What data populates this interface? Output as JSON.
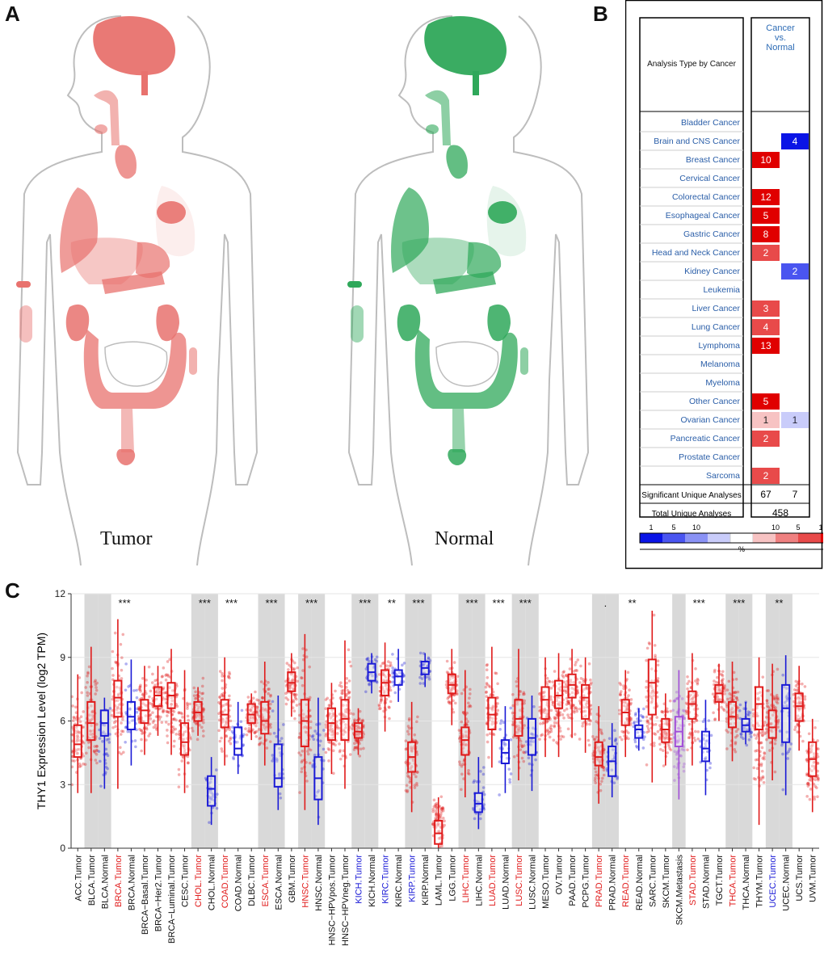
{
  "panels": {
    "a": "A",
    "b": "B",
    "c": "C"
  },
  "anatomy": {
    "tumor_label": "Tumor",
    "normal_label": "Normal",
    "tumor_color": "#e8726e",
    "normal_color": "#2fa85a"
  },
  "oncomine": {
    "header_left": "Analysis Type by Cancer",
    "header_right": [
      "Cancer",
      "vs.",
      "Normal"
    ],
    "rows": [
      {
        "name": "Bladder Cancer",
        "up": null,
        "down": null
      },
      {
        "name": "Brain and CNS Cancer",
        "up": null,
        "down": 4
      },
      {
        "name": "Breast Cancer",
        "up": 10,
        "down": null
      },
      {
        "name": "Cervical Cancer",
        "up": null,
        "down": null
      },
      {
        "name": "Colorectal Cancer",
        "up": 12,
        "down": null
      },
      {
        "name": "Esophageal Cancer",
        "up": 5,
        "down": null
      },
      {
        "name": "Gastric Cancer",
        "up": 8,
        "down": null
      },
      {
        "name": "Head and Neck Cancer",
        "up": 2,
        "down": null
      },
      {
        "name": "Kidney Cancer",
        "up": null,
        "down": 2
      },
      {
        "name": "Leukemia",
        "up": null,
        "down": null
      },
      {
        "name": "Liver Cancer",
        "up": 3,
        "down": null
      },
      {
        "name": "Lung Cancer",
        "up": 4,
        "down": null
      },
      {
        "name": "Lymphoma",
        "up": 13,
        "down": null
      },
      {
        "name": "Melanoma",
        "up": null,
        "down": null
      },
      {
        "name": "Myeloma",
        "up": null,
        "down": null
      },
      {
        "name": "Other Cancer",
        "up": 5,
        "down": null
      },
      {
        "name": "Ovarian Cancer",
        "up": 1,
        "down": 1
      },
      {
        "name": "Pancreatic Cancer",
        "up": 2,
        "down": null
      },
      {
        "name": "Prostate Cancer",
        "up": null,
        "down": null
      },
      {
        "name": "Sarcoma",
        "up": 2,
        "down": null
      }
    ],
    "significant_label": "Significant Unique Analyses",
    "significant_up": "67",
    "significant_down": "7",
    "total_label": "Total Unique Analyses",
    "total": "458",
    "legend_blue_ticks": [
      "1",
      "5",
      "10"
    ],
    "legend_red_ticks": [
      "10",
      "5",
      "1"
    ],
    "legend_unit": "%",
    "blue_scale": [
      "#0a14e6",
      "#4a55f0",
      "#8a92f5",
      "#c9ccfa"
    ],
    "red_scale": [
      "#f7c3c3",
      "#ef8080",
      "#e84a4a",
      "#e00000"
    ]
  },
  "chart_data": {
    "type": "box",
    "ylabel": "THY1 Expression Level (log2 TPM)",
    "ylim": [
      0,
      12
    ],
    "yticks": [
      "0",
      "3",
      "6",
      "9",
      "12"
    ],
    "colors": {
      "tumor": "#e01b1b",
      "normal": "#1a1ad6",
      "metastasis": "#a24fd9"
    },
    "categories": [
      {
        "label": "ACC.Tumor",
        "type": "tumor",
        "shade": false,
        "median": 4.9,
        "q1": 4.3,
        "q3": 5.8,
        "lo": 2.6,
        "hi": 8.2,
        "lc": "black",
        "sig": ""
      },
      {
        "label": "BLCA.Tumor",
        "type": "tumor",
        "shade": true,
        "median": 5.9,
        "q1": 5.1,
        "q3": 6.9,
        "lo": 2.6,
        "hi": 9.5,
        "lc": "black",
        "sig": ""
      },
      {
        "label": "BLCA.Normal",
        "type": "normal",
        "shade": true,
        "median": 5.9,
        "q1": 5.3,
        "q3": 6.5,
        "lo": 2.8,
        "hi": 7.1,
        "lc": "black",
        "sig": ""
      },
      {
        "label": "BRCA.Tumor",
        "type": "tumor",
        "shade": false,
        "median": 7.1,
        "q1": 6.2,
        "q3": 7.9,
        "lo": 2.8,
        "hi": 10.8,
        "lc": "red",
        "sig": "***"
      },
      {
        "label": "BRCA.Normal",
        "type": "normal",
        "shade": false,
        "median": 6.2,
        "q1": 5.6,
        "q3": 6.9,
        "lo": 3.9,
        "hi": 8.9,
        "lc": "black",
        "sig": ""
      },
      {
        "label": "BRCA−Basal.Tumor",
        "type": "tumor",
        "shade": false,
        "median": 6.5,
        "q1": 5.9,
        "q3": 7.0,
        "lo": 4.4,
        "hi": 8.6,
        "lc": "black",
        "sig": ""
      },
      {
        "label": "BRCA−Her2.Tumor",
        "type": "tumor",
        "shade": false,
        "median": 7.2,
        "q1": 6.7,
        "q3": 7.6,
        "lo": 5.3,
        "hi": 8.6,
        "lc": "black",
        "sig": ""
      },
      {
        "label": "BRCA−Luminal.Tumor",
        "type": "tumor",
        "shade": false,
        "median": 7.2,
        "q1": 6.6,
        "q3": 7.8,
        "lo": 4.4,
        "hi": 9.4,
        "lc": "black",
        "sig": ""
      },
      {
        "label": "CESC.Tumor",
        "type": "tumor",
        "shade": false,
        "median": 5.0,
        "q1": 4.4,
        "q3": 5.9,
        "lo": 2.6,
        "hi": 8.4,
        "lc": "black",
        "sig": ""
      },
      {
        "label": "CHOL.Tumor",
        "type": "tumor",
        "shade": true,
        "median": 6.4,
        "q1": 6.0,
        "q3": 6.9,
        "lo": 5.3,
        "hi": 7.6,
        "lc": "red",
        "sig": "***"
      },
      {
        "label": "CHOL.Normal",
        "type": "normal",
        "shade": true,
        "median": 2.8,
        "q1": 2.0,
        "q3": 3.4,
        "lo": 1.1,
        "hi": 4.3,
        "lc": "black",
        "sig": ""
      },
      {
        "label": "COAD.Tumor",
        "type": "tumor",
        "shade": false,
        "median": 6.3,
        "q1": 5.7,
        "q3": 7.0,
        "lo": 3.9,
        "hi": 9.0,
        "lc": "red",
        "sig": "***"
      },
      {
        "label": "COAD.Normal",
        "type": "normal",
        "shade": false,
        "median": 4.7,
        "q1": 4.4,
        "q3": 5.7,
        "lo": 3.5,
        "hi": 6.9,
        "lc": "black",
        "sig": ""
      },
      {
        "label": "DLBC.Tumor",
        "type": "tumor",
        "shade": false,
        "median": 6.3,
        "q1": 5.9,
        "q3": 6.8,
        "lo": 5.1,
        "hi": 7.3,
        "lc": "black",
        "sig": ""
      },
      {
        "label": "ESCA.Tumor",
        "type": "tumor",
        "shade": true,
        "median": 6.0,
        "q1": 5.4,
        "q3": 6.9,
        "lo": 3.9,
        "hi": 8.8,
        "lc": "red",
        "sig": "***"
      },
      {
        "label": "ESCA.Normal",
        "type": "normal",
        "shade": true,
        "median": 3.3,
        "q1": 2.9,
        "q3": 4.9,
        "lo": 1.8,
        "hi": 7.2,
        "lc": "black",
        "sig": ""
      },
      {
        "label": "GBM.Tumor",
        "type": "tumor",
        "shade": false,
        "median": 7.8,
        "q1": 7.4,
        "q3": 8.3,
        "lo": 6.2,
        "hi": 9.2,
        "lc": "black",
        "sig": ""
      },
      {
        "label": "HNSC.Tumor",
        "type": "tumor",
        "shade": true,
        "median": 6.0,
        "q1": 4.8,
        "q3": 7.0,
        "lo": 1.8,
        "hi": 10.1,
        "lc": "red",
        "sig": "***"
      },
      {
        "label": "HNSC.Normal",
        "type": "normal",
        "shade": true,
        "median": 3.3,
        "q1": 2.3,
        "q3": 4.3,
        "lo": 1.1,
        "hi": 7.1,
        "lc": "black",
        "sig": ""
      },
      {
        "label": "HNSC−HPVpos.Tumor",
        "type": "tumor",
        "shade": false,
        "median": 5.9,
        "q1": 5.1,
        "q3": 6.6,
        "lo": 3.5,
        "hi": 7.8,
        "lc": "black",
        "sig": ""
      },
      {
        "label": "HNSC−HPVneg.Tumor",
        "type": "tumor",
        "shade": false,
        "median": 6.1,
        "q1": 5.1,
        "q3": 7.0,
        "lo": 2.8,
        "hi": 9.8,
        "lc": "black",
        "sig": ""
      },
      {
        "label": "KICH.Tumor",
        "type": "tumor",
        "shade": true,
        "median": 5.5,
        "q1": 5.2,
        "q3": 5.9,
        "lo": 4.4,
        "hi": 6.6,
        "lc": "blue",
        "sig": "***"
      },
      {
        "label": "KICH.Normal",
        "type": "normal",
        "shade": true,
        "median": 8.3,
        "q1": 7.9,
        "q3": 8.7,
        "lo": 7.3,
        "hi": 9.2,
        "lc": "black",
        "sig": ""
      },
      {
        "label": "KIRC.Tumor",
        "type": "tumor",
        "shade": false,
        "median": 7.8,
        "q1": 7.2,
        "q3": 8.4,
        "lo": 5.5,
        "hi": 9.7,
        "lc": "blue",
        "sig": "**"
      },
      {
        "label": "KIRC.Normal",
        "type": "normal",
        "shade": false,
        "median": 8.1,
        "q1": 7.7,
        "q3": 8.4,
        "lo": 6.9,
        "hi": 9.4,
        "lc": "black",
        "sig": ""
      },
      {
        "label": "KIRP.Tumor",
        "type": "tumor",
        "shade": true,
        "median": 4.3,
        "q1": 3.6,
        "q3": 5.0,
        "lo": 1.7,
        "hi": 6.9,
        "lc": "blue",
        "sig": "***"
      },
      {
        "label": "KIRP.Normal",
        "type": "normal",
        "shade": true,
        "median": 8.5,
        "q1": 8.2,
        "q3": 8.8,
        "lo": 7.6,
        "hi": 9.2,
        "lc": "black",
        "sig": ""
      },
      {
        "label": "LAML.Tumor",
        "type": "tumor",
        "shade": false,
        "median": 0.7,
        "q1": 0.2,
        "q3": 1.3,
        "lo": 0.0,
        "hi": 2.4,
        "lc": "black",
        "sig": ""
      },
      {
        "label": "LGG.Tumor",
        "type": "tumor",
        "shade": false,
        "median": 7.7,
        "q1": 7.3,
        "q3": 8.2,
        "lo": 5.8,
        "hi": 9.4,
        "lc": "black",
        "sig": ""
      },
      {
        "label": "LIHC.Tumor",
        "type": "tumor",
        "shade": true,
        "median": 5.1,
        "q1": 4.4,
        "q3": 5.7,
        "lo": 2.4,
        "hi": 8.4,
        "lc": "red",
        "sig": "***"
      },
      {
        "label": "LIHC.Normal",
        "type": "normal",
        "shade": true,
        "median": 2.1,
        "q1": 1.7,
        "q3": 2.6,
        "lo": 0.9,
        "hi": 4.3,
        "lc": "black",
        "sig": ""
      },
      {
        "label": "LUAD.Tumor",
        "type": "tumor",
        "shade": false,
        "median": 6.3,
        "q1": 5.6,
        "q3": 7.1,
        "lo": 3.8,
        "hi": 9.5,
        "lc": "red",
        "sig": "***"
      },
      {
        "label": "LUAD.Normal",
        "type": "normal",
        "shade": false,
        "median": 4.5,
        "q1": 4.0,
        "q3": 5.1,
        "lo": 2.6,
        "hi": 6.7,
        "lc": "black",
        "sig": ""
      },
      {
        "label": "LUSC.Tumor",
        "type": "tumor",
        "shade": true,
        "median": 6.1,
        "q1": 5.3,
        "q3": 7.0,
        "lo": 3.2,
        "hi": 9.4,
        "lc": "red",
        "sig": "***"
      },
      {
        "label": "LUSC.Normal",
        "type": "normal",
        "shade": true,
        "median": 5.2,
        "q1": 4.4,
        "q3": 6.1,
        "lo": 2.7,
        "hi": 7.2,
        "lc": "black",
        "sig": ""
      },
      {
        "label": "MESO.Tumor",
        "type": "tumor",
        "shade": false,
        "median": 7.0,
        "q1": 6.1,
        "q3": 7.6,
        "lo": 4.3,
        "hi": 9.0,
        "lc": "black",
        "sig": ""
      },
      {
        "label": "OV.Tumor",
        "type": "tumor",
        "shade": false,
        "median": 7.2,
        "q1": 6.6,
        "q3": 7.9,
        "lo": 4.3,
        "hi": 9.2,
        "lc": "black",
        "sig": ""
      },
      {
        "label": "PAAD.Tumor",
        "type": "tumor",
        "shade": false,
        "median": 7.7,
        "q1": 7.1,
        "q3": 8.2,
        "lo": 5.2,
        "hi": 9.4,
        "lc": "black",
        "sig": ""
      },
      {
        "label": "PCPG.Tumor",
        "type": "tumor",
        "shade": false,
        "median": 7.1,
        "q1": 6.1,
        "q3": 7.7,
        "lo": 4.5,
        "hi": 9.0,
        "lc": "black",
        "sig": ""
      },
      {
        "label": "PRAD.Tumor",
        "type": "tumor",
        "shade": true,
        "median": 4.3,
        "q1": 3.9,
        "q3": 5.0,
        "lo": 2.1,
        "hi": 6.7,
        "lc": "red",
        "sig": "."
      },
      {
        "label": "PRAD.Normal",
        "type": "normal",
        "shade": true,
        "median": 4.1,
        "q1": 3.4,
        "q3": 4.8,
        "lo": 2.4,
        "hi": 5.9,
        "lc": "black",
        "sig": ""
      },
      {
        "label": "READ.Tumor",
        "type": "tumor",
        "shade": false,
        "median": 6.4,
        "q1": 5.8,
        "q3": 7.0,
        "lo": 4.3,
        "hi": 8.4,
        "lc": "red",
        "sig": "**"
      },
      {
        "label": "READ.Normal",
        "type": "normal",
        "shade": false,
        "median": 5.6,
        "q1": 5.2,
        "q3": 5.8,
        "lo": 4.6,
        "hi": 6.6,
        "lc": "black",
        "sig": ""
      },
      {
        "label": "SARC.Tumor",
        "type": "tumor",
        "shade": false,
        "median": 7.8,
        "q1": 6.3,
        "q3": 8.9,
        "lo": 3.1,
        "hi": 11.2,
        "lc": "black",
        "sig": ""
      },
      {
        "label": "SKCM.Tumor",
        "type": "tumor",
        "shade": false,
        "median": 5.6,
        "q1": 5.0,
        "q3": 6.1,
        "lo": 3.9,
        "hi": 7.3,
        "lc": "black",
        "sig": ""
      },
      {
        "label": "SKCM.Metastasis",
        "type": "metastasis",
        "shade": true,
        "median": 5.5,
        "q1": 4.8,
        "q3": 6.2,
        "lo": 2.3,
        "hi": 8.4,
        "lc": "black",
        "sig": ""
      },
      {
        "label": "STAD.Tumor",
        "type": "tumor",
        "shade": false,
        "median": 6.8,
        "q1": 6.1,
        "q3": 7.4,
        "lo": 3.9,
        "hi": 9.2,
        "lc": "red",
        "sig": "***"
      },
      {
        "label": "STAD.Normal",
        "type": "normal",
        "shade": false,
        "median": 4.7,
        "q1": 4.1,
        "q3": 5.5,
        "lo": 2.5,
        "hi": 7.0,
        "lc": "black",
        "sig": ""
      },
      {
        "label": "TGCT.Tumor",
        "type": "tumor",
        "shade": false,
        "median": 7.3,
        "q1": 6.9,
        "q3": 7.7,
        "lo": 6.0,
        "hi": 8.7,
        "lc": "black",
        "sig": ""
      },
      {
        "label": "THCA.Tumor",
        "type": "tumor",
        "shade": true,
        "median": 6.2,
        "q1": 5.7,
        "q3": 6.9,
        "lo": 4.1,
        "hi": 8.8,
        "lc": "red",
        "sig": "***"
      },
      {
        "label": "THCA.Normal",
        "type": "normal",
        "shade": true,
        "median": 5.8,
        "q1": 5.5,
        "q3": 6.1,
        "lo": 4.9,
        "hi": 6.9,
        "lc": "black",
        "sig": ""
      },
      {
        "label": "THYM.Tumor",
        "type": "tumor",
        "shade": false,
        "median": 6.8,
        "q1": 5.6,
        "q3": 7.6,
        "lo": 1.1,
        "hi": 9.0,
        "lc": "black",
        "sig": ""
      },
      {
        "label": "UCEC.Tumor",
        "type": "tumor",
        "shade": true,
        "median": 5.7,
        "q1": 5.2,
        "q3": 6.5,
        "lo": 3.2,
        "hi": 8.7,
        "lc": "blue",
        "sig": "**"
      },
      {
        "label": "UCEC.Normal",
        "type": "normal",
        "shade": true,
        "median": 6.6,
        "q1": 5.0,
        "q3": 7.7,
        "lo": 2.5,
        "hi": 9.1,
        "lc": "black",
        "sig": ""
      },
      {
        "label": "UCS.Tumor",
        "type": "tumor",
        "shade": false,
        "median": 6.7,
        "q1": 6.0,
        "q3": 7.3,
        "lo": 4.6,
        "hi": 8.6,
        "lc": "black",
        "sig": ""
      },
      {
        "label": "UVM.Tumor",
        "type": "tumor",
        "shade": false,
        "median": 4.2,
        "q1": 3.4,
        "q3": 5.0,
        "lo": 1.7,
        "hi": 6.1,
        "lc": "black",
        "sig": ""
      }
    ]
  }
}
